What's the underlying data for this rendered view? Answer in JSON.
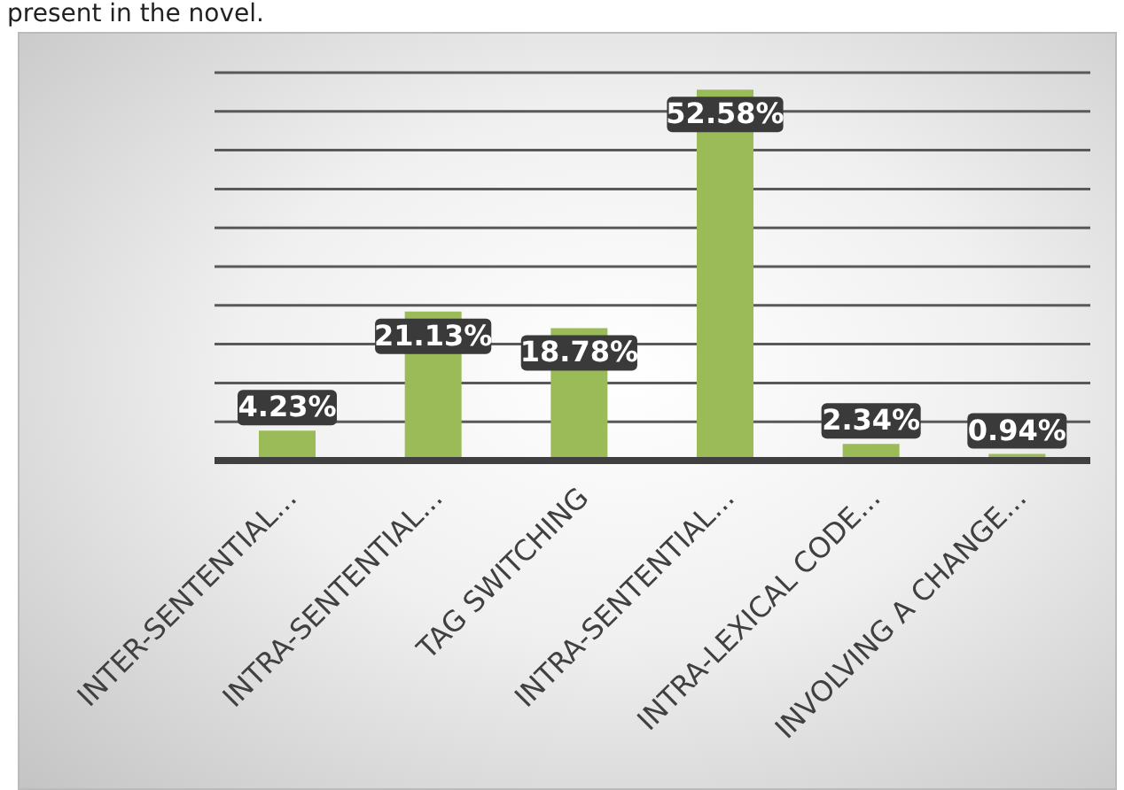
{
  "chart_data": {
    "type": "bar",
    "annotations": [
      "present in the novel."
    ],
    "categories": [
      "INTER-SENTENTIAL...",
      "INTRA-SENTENTIAL...",
      "TAG SWITCHING",
      "INTRA-SENTENTIAL...",
      "INTRA-LEXICAL CODE...",
      "INVOLVING A CHANGE..."
    ],
    "values": [
      4.23,
      21.13,
      18.78,
      52.58,
      2.34,
      0.94
    ],
    "value_labels": [
      "4.23%",
      "21.13%",
      "18.78%",
      "52.58%",
      "2.34%",
      "0.94%"
    ],
    "color": "#9bbb59",
    "ylim": [
      0,
      55
    ],
    "yticks": [
      {
        "value": 0,
        "label": null
      },
      {
        "value": 5.5,
        "label": null
      },
      {
        "value": 11,
        "label": null
      },
      {
        "value": 16.5,
        "label": null
      },
      {
        "value": 22,
        "label": null
      },
      {
        "value": 27.5,
        "label": null
      },
      {
        "value": 33,
        "label": null
      },
      {
        "value": 38.5,
        "label": null
      },
      {
        "value": 44,
        "label": null
      },
      {
        "value": 49.5,
        "label": null
      },
      {
        "value": 55,
        "label": null
      }
    ],
    "grid": "y",
    "tick_labels": "x"
  }
}
